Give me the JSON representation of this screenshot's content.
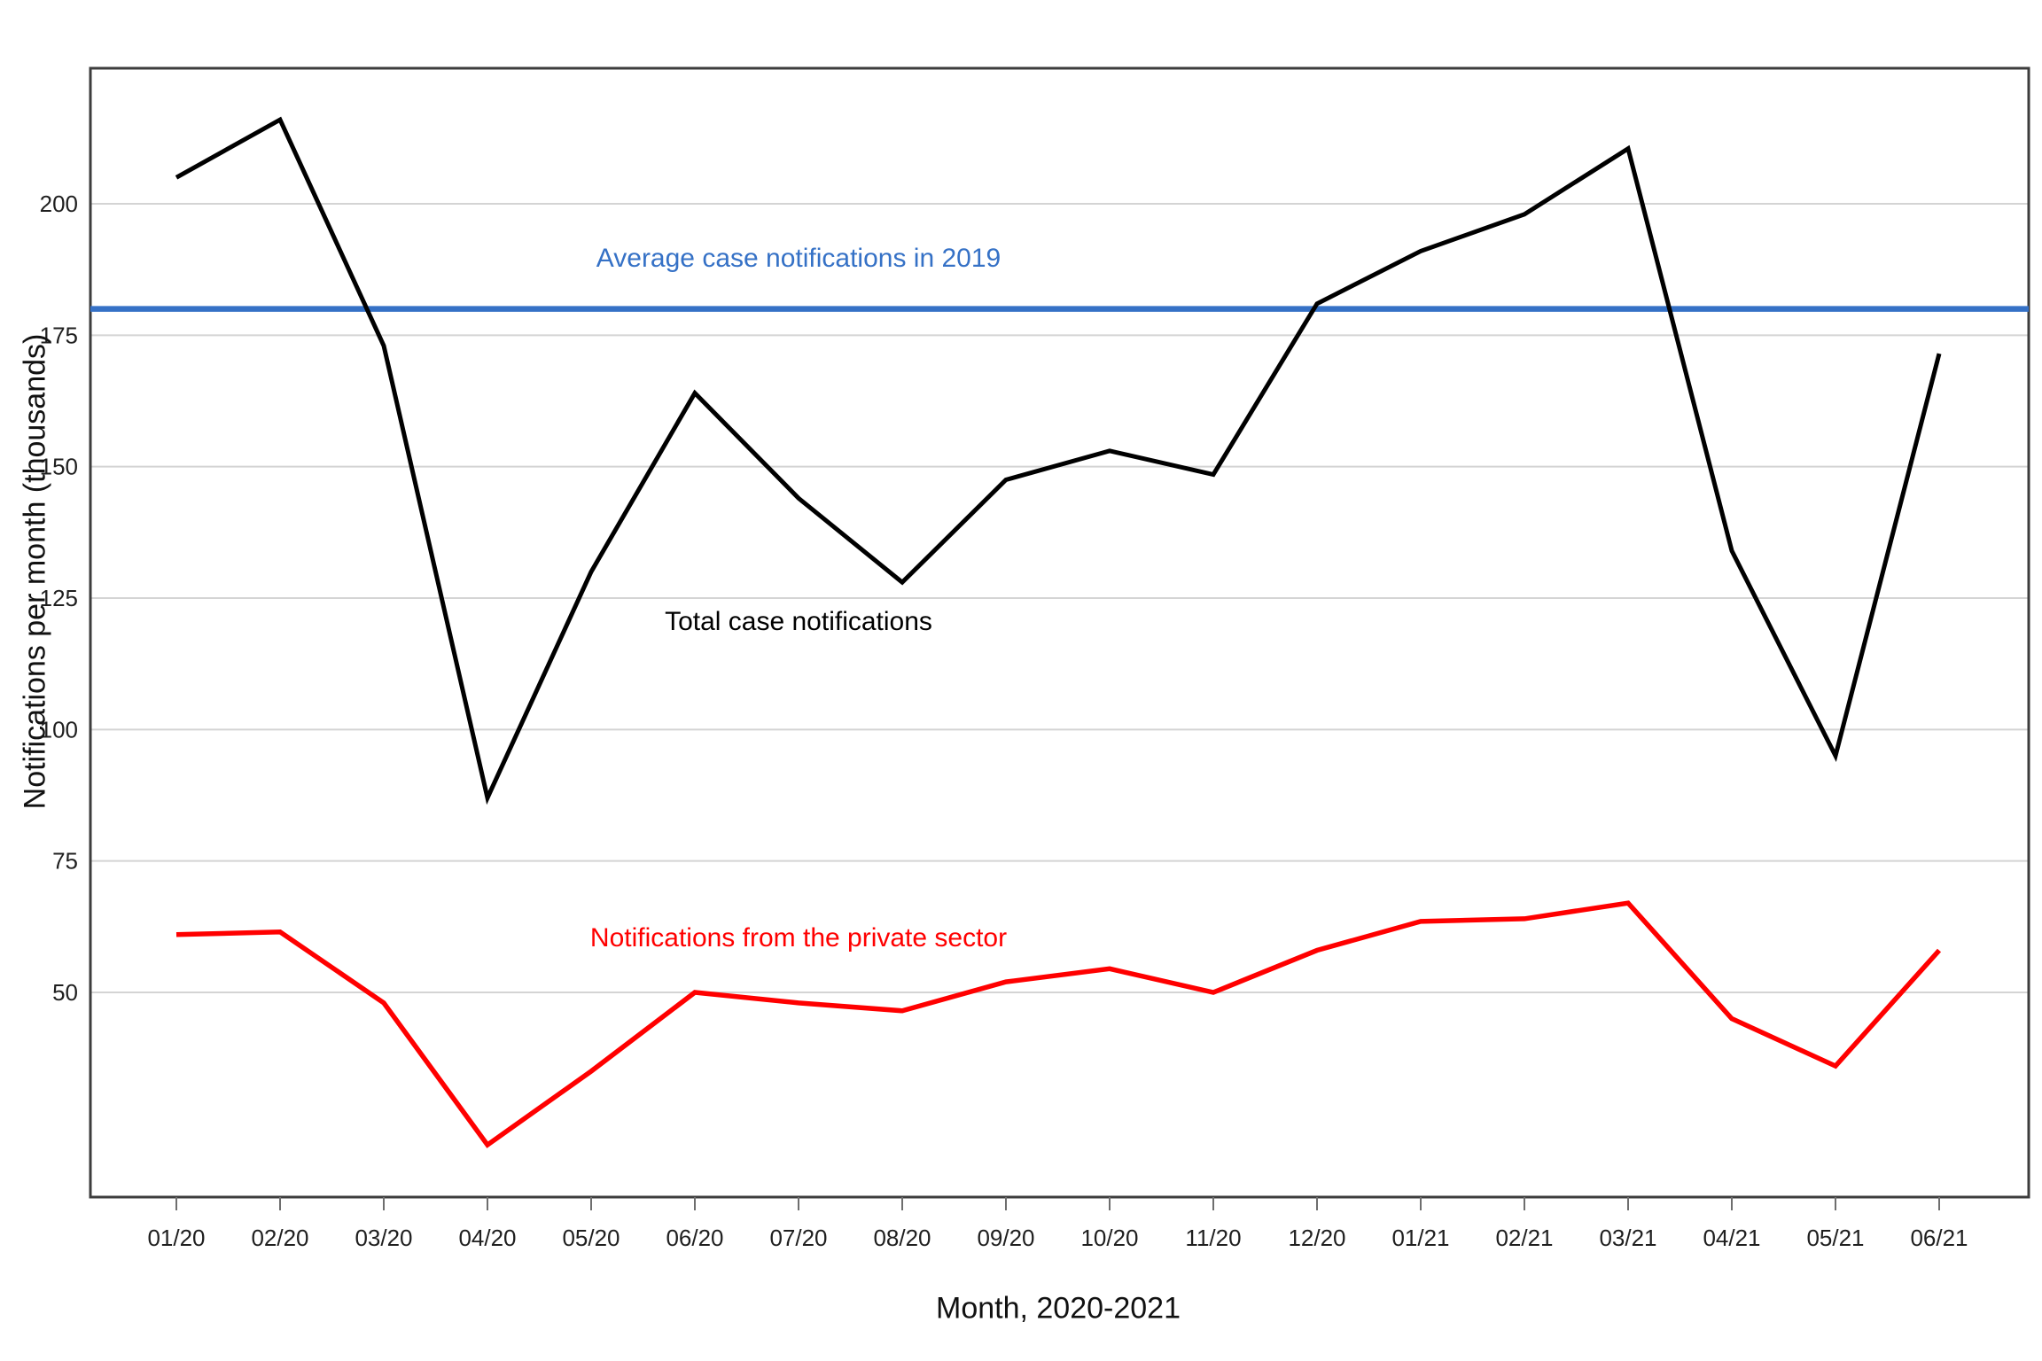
{
  "chart_data": {
    "type": "line",
    "title": "",
    "xlabel": "Month, 2020-2021",
    "ylabel": "Notifications per month (thousands)",
    "categories": [
      "01/20",
      "02/20",
      "03/20",
      "04/20",
      "05/20",
      "06/20",
      "07/20",
      "08/20",
      "09/20",
      "10/20",
      "11/20",
      "12/20",
      "01/21",
      "02/21",
      "03/21",
      "04/21",
      "05/21",
      "06/21"
    ],
    "y_ticks": [
      50,
      75,
      100,
      125,
      150,
      175,
      200
    ],
    "ylim": [
      11,
      226
    ],
    "grid": "horizontal-only",
    "legend_position": "inline-annotations",
    "series": [
      {
        "name": "Total case notifications",
        "color": "#000000",
        "values": [
          205,
          216,
          173,
          87,
          130,
          164,
          144,
          128,
          147.5,
          153,
          148.5,
          181,
          191,
          198,
          210.5,
          134,
          95,
          171.5
        ],
        "label_anchor": {
          "month_index": 6.0,
          "value": 120.5
        }
      },
      {
        "name": "Notifications from the private sector",
        "color": "#FF0000",
        "values": [
          61,
          61.5,
          48,
          21,
          35,
          50,
          48,
          46.5,
          52,
          54.5,
          50,
          58,
          63.5,
          64,
          67,
          45,
          36,
          58
        ],
        "label_anchor": {
          "month_index": 6.0,
          "value": 60.3
        }
      }
    ],
    "reference_line": {
      "label": "Average case notifications in 2019",
      "value": 180,
      "color": "#3571C6",
      "label_anchor": {
        "month_index": 6.0,
        "value": 189.5
      }
    }
  }
}
